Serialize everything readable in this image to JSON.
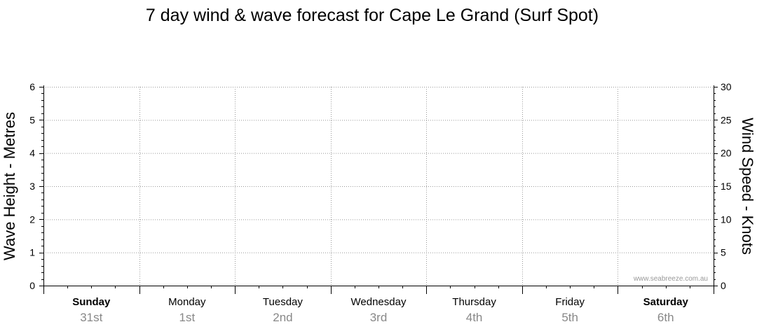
{
  "chart_data": {
    "type": "line",
    "title": "7 day wind & wave forecast for Cape Le Grand (Surf Spot)",
    "y_left": {
      "label": "Wave Height - Metres",
      "range": [
        0,
        6
      ],
      "ticks": [
        0,
        1,
        2,
        3,
        4,
        5,
        6
      ]
    },
    "y_right": {
      "label": "Wind Speed - Knots",
      "range": [
        0,
        30
      ],
      "ticks": [
        0,
        5,
        10,
        15,
        20,
        25,
        30
      ]
    },
    "days": [
      {
        "name": "Sunday",
        "date": "31st",
        "weekend": true
      },
      {
        "name": "Monday",
        "date": "1st",
        "weekend": false
      },
      {
        "name": "Tuesday",
        "date": "2nd",
        "weekend": false
      },
      {
        "name": "Wednesday",
        "date": "3rd",
        "weekend": false
      },
      {
        "name": "Thursday",
        "date": "4th",
        "weekend": false
      },
      {
        "name": "Friday",
        "date": "5th",
        "weekend": false
      },
      {
        "name": "Saturday",
        "date": "6th",
        "weekend": true
      }
    ],
    "series": [],
    "grid": true,
    "watermark": "www.seabreeze.com.au"
  },
  "colors": {
    "axis": "#000000",
    "grid": "#999999",
    "date_text": "#888888",
    "watermark": "#999999"
  }
}
